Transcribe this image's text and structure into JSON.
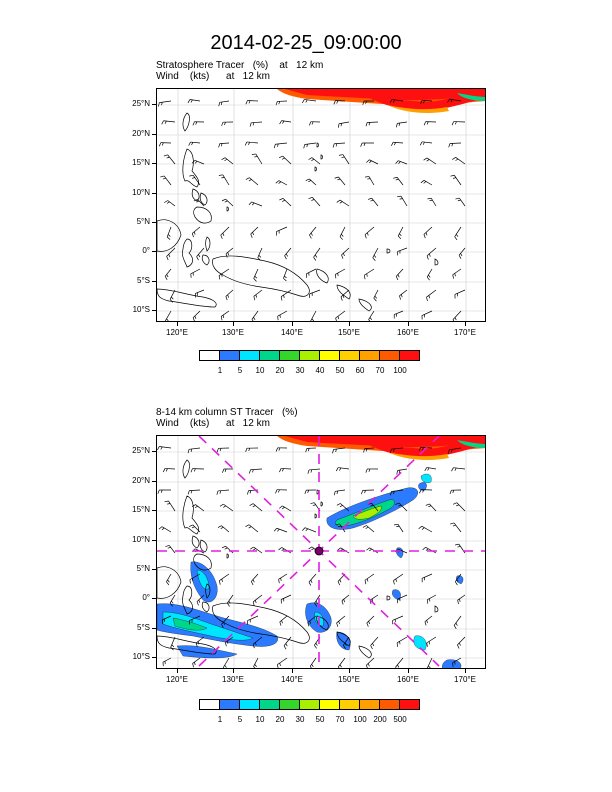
{
  "title": "2014-02-25_09:00:00",
  "panels": [
    {
      "line1": "Stratosphere Tracer   (%)    at   12 km",
      "line2": "Wind    (kts)      at   12 km",
      "lat_labels": [
        "25°N",
        "20°N",
        "15°N",
        "10°N",
        "5°N",
        "0°",
        "5°S",
        "10°S"
      ],
      "lon_labels": [
        "120°E",
        "130°E",
        "140°E",
        "150°E",
        "160°E",
        "170°E"
      ],
      "colorbar": {
        "labels": [
          "1",
          "5",
          "10",
          "20",
          "30",
          "40",
          "50",
          "60",
          "70",
          "100"
        ],
        "colors": [
          "#ffffff",
          "#2c7bff",
          "#00e5ff",
          "#00d68a",
          "#34d62c",
          "#a8f000",
          "#ffff00",
          "#ffd000",
          "#ffa000",
          "#ff5a00",
          "#ff1010"
        ]
      }
    },
    {
      "line1": "8-14 km column ST Tracer   (%)",
      "line2": "Wind    (kts)      at   12 km",
      "lat_labels": [
        "25°N",
        "20°N",
        "15°N",
        "10°N",
        "5°N",
        "0°",
        "5°S",
        "10°S"
      ],
      "lon_labels": [
        "120°E",
        "130°E",
        "140°E",
        "150°E",
        "160°E",
        "170°E"
      ],
      "colorbar": {
        "labels": [
          "1",
          "5",
          "10",
          "20",
          "30",
          "50",
          "70",
          "100",
          "200",
          "500"
        ],
        "colors": [
          "#ffffff",
          "#2c7bff",
          "#00e5ff",
          "#00d68a",
          "#34d62c",
          "#a8f000",
          "#ffff00",
          "#ffd000",
          "#ffa000",
          "#ff5a00",
          "#ff1010"
        ]
      },
      "crosshair": {
        "color": "#e020e0"
      }
    }
  ]
}
